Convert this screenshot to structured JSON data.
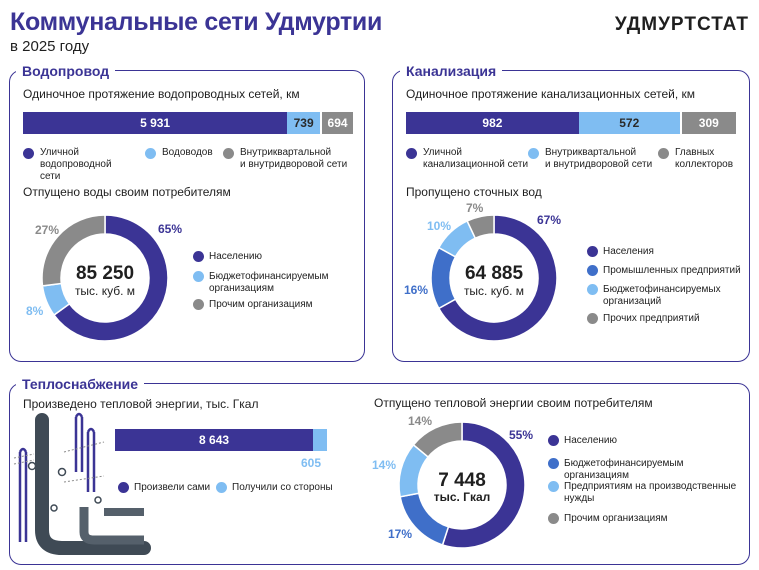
{
  "header": {
    "title": "Коммунальные сети Удмуртии",
    "subtitle": "в 2025 году",
    "brand": "УДМУРТСТАТ"
  },
  "colors": {
    "dark": "#3b3495",
    "mid": "#3f6fc9",
    "light": "#7fbdf2",
    "gray": "#8a8a8a",
    "darkgray": "#3f4a55"
  },
  "water": {
    "title": "Водопровод",
    "bar_title": "Одиночное протяжение водопроводных сетей, км",
    "bar_values_text": [
      "5 931",
      "739",
      "694"
    ],
    "legend": [
      {
        "line1": "Уличной",
        "line2": "водопроводной сети",
        "color": "#3b3495"
      },
      {
        "line1": "Водоводов",
        "line2": "",
        "color": "#7fbdf2"
      },
      {
        "line1": "Внутриквартальной",
        "line2": "и внутридворовой сети",
        "color": "#8a8a8a"
      }
    ],
    "donut_title": "Отпущено воды своим потребителям",
    "center_value": "85 250",
    "center_unit": "тыс. куб. м",
    "pct_labels": [
      "65%",
      "8%",
      "27%"
    ],
    "donut_legend": [
      {
        "line1": "Населению",
        "line2": "",
        "color": "#3b3495"
      },
      {
        "line1": "Бюджетофинансируемым",
        "line2": "организациям",
        "color": "#7fbdf2"
      },
      {
        "line1": "Прочим организациям",
        "line2": "",
        "color": "#8a8a8a"
      }
    ]
  },
  "sewer": {
    "title": "Канализация",
    "bar_title": "Одиночное протяжение канализационных сетей, км",
    "bar_values_text": [
      "982",
      "572",
      "309"
    ],
    "legend": [
      {
        "line1": "Уличной",
        "line2": "канализационной сети",
        "color": "#3b3495"
      },
      {
        "line1": "Внутриквартальной",
        "line2": "и внутридворовой сети",
        "color": "#7fbdf2"
      },
      {
        "line1": "Главных",
        "line2": "коллекторов",
        "color": "#8a8a8a"
      }
    ],
    "donut_title": "Пропущено сточных вод",
    "center_value": "64 885",
    "center_unit": "тыс. куб. м",
    "pct_labels": [
      "67%",
      "16%",
      "10%",
      "7%"
    ],
    "donut_legend": [
      {
        "line1": "Населения",
        "line2": "",
        "color": "#3b3495"
      },
      {
        "line1": "Промышленных предприятий",
        "line2": "",
        "color": "#3f6fc9"
      },
      {
        "line1": "Бюджетофинансируемых",
        "line2": "организаций",
        "color": "#7fbdf2"
      },
      {
        "line1": "Прочих предприятий",
        "line2": "",
        "color": "#8a8a8a"
      }
    ]
  },
  "heat": {
    "title": "Теплоснабжение",
    "bar_title": "Произведено тепловой энергии, тыс. Гкал",
    "bar_values_text": [
      "8 643",
      "605"
    ],
    "bar_legend": [
      {
        "label": "Произвели сами",
        "color": "#3b3495"
      },
      {
        "label": "Получили со стороны",
        "color": "#7fbdf2"
      }
    ],
    "donut_title": "Отпущено тепловой энергии своим потребителям",
    "center_value": "7 448",
    "center_unit": "тыс. Гкал",
    "pct_labels": [
      "55%",
      "17%",
      "14%",
      "14%"
    ],
    "donut_legend": [
      {
        "line1": "Населению",
        "line2": "",
        "color": "#3b3495"
      },
      {
        "line1": "Бюджетофинансируемым организациям",
        "line2": "",
        "color": "#3f6fc9"
      },
      {
        "line1": "Предприятиям на производственные",
        "line2": "нужды",
        "color": "#7fbdf2"
      },
      {
        "line1": "Прочим организациям",
        "line2": "",
        "color": "#8a8a8a"
      }
    ]
  },
  "chart_data": [
    {
      "type": "bar",
      "title": "Одиночное протяжение водопроводных сетей, км",
      "categories": [
        "Уличной водопроводной сети",
        "Водоводов",
        "Внутриквартальной и внутридворовой сети"
      ],
      "values": [
        5931,
        739,
        694
      ]
    },
    {
      "type": "pie",
      "title": "Отпущено воды своим потребителям",
      "categories": [
        "Населению",
        "Бюджетофинансируемым организациям",
        "Прочим организациям"
      ],
      "values": [
        65,
        8,
        27
      ]
    },
    {
      "type": "bar",
      "title": "Одиночное протяжение канализационных сетей, км",
      "categories": [
        "Уличной канализационной сети",
        "Внутриквартальной и внутридворовой сети",
        "Главных коллекторов"
      ],
      "values": [
        982,
        572,
        309
      ]
    },
    {
      "type": "pie",
      "title": "Пропущено сточных вод",
      "categories": [
        "Населения",
        "Промышленных предприятий",
        "Бюджетофинансируемых организаций",
        "Прочих предприятий"
      ],
      "values": [
        67,
        16,
        10,
        7
      ]
    },
    {
      "type": "bar",
      "title": "Произведено тепловой энергии, тыс. Гкал",
      "categories": [
        "Произвели сами",
        "Получили со стороны"
      ],
      "values": [
        8643,
        605
      ]
    },
    {
      "type": "pie",
      "title": "Отпущено тепловой энергии своим потребителям",
      "categories": [
        "Населению",
        "Бюджетофинансируемым организациям",
        "Предприятиям на производственные нужды",
        "Прочим организациям"
      ],
      "values": [
        55,
        17,
        14,
        14
      ]
    }
  ]
}
